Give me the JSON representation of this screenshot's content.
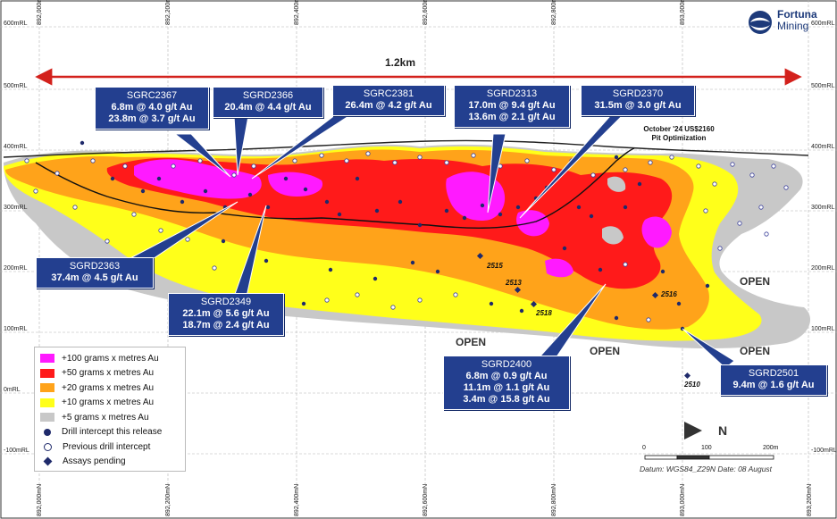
{
  "logo": {
    "name": "Fortuna",
    "sub": "Mining"
  },
  "axes": {
    "easting_top": [
      "892,000mN",
      "892,200mN",
      "892,400mN",
      "892,600mN",
      "892,800mN",
      "893,000mN"
    ],
    "easting_bottom": [
      "892,000mN",
      "892,200mN",
      "892,400mN",
      "892,600mN",
      "892,800mN",
      "893,000mN",
      "893,200mN"
    ],
    "rl_left": [
      "600mRL",
      "500mRL",
      "400mRL",
      "300mRL",
      "200mRL",
      "100mRL",
      "0mRL",
      "-100mRL"
    ],
    "rl_right": [
      "600mRL",
      "500mRL",
      "400mRL",
      "300mRL",
      "200mRL",
      "100mRL",
      "0mRL",
      "-100mRL"
    ]
  },
  "distance_label": "1.2km",
  "pit_label": [
    "October '24 US$2160",
    "Pit Optimization"
  ],
  "callouts": [
    {
      "hole": "SGRC2367",
      "intervals": [
        "6.8m @ 4.0 g/t Au",
        "23.8m @ 3.7 g/t Au"
      ]
    },
    {
      "hole": "SGRD2366",
      "intervals": [
        "20.4m @ 4.4 g/t Au"
      ]
    },
    {
      "hole": "SGRC2381",
      "intervals": [
        "26.4m @ 4.2 g/t Au"
      ]
    },
    {
      "hole": "SGRD2313",
      "intervals": [
        "17.0m @ 9.4 g/t Au",
        "13.6m @ 2.1 g/t Au"
      ]
    },
    {
      "hole": "SGRD2370",
      "intervals": [
        "31.5m @ 3.0 g/t Au"
      ]
    },
    {
      "hole": "SGRD2363",
      "intervals": [
        "37.4m @ 4.5 g/t Au"
      ]
    },
    {
      "hole": "SGRD2349",
      "intervals": [
        "22.1m @ 5.6 g/t Au",
        "18.7m @ 2.4 g/t Au"
      ]
    },
    {
      "hole": "SGRD2400",
      "intervals": [
        "6.8m @ 0.9 g/t Au",
        "11.1m @ 1.1 g/t Au",
        "3.4m @ 15.8 g/t Au"
      ]
    },
    {
      "hole": "SGRD2501",
      "intervals": [
        "9.4m @ 1.6 g/t Au"
      ]
    }
  ],
  "open_labels": [
    "OPEN",
    "OPEN",
    "OPEN",
    "OPEN"
  ],
  "pending_labels": [
    "2515",
    "2513",
    "2518",
    "2516",
    "2510"
  ],
  "legend": [
    {
      "kind": "swatch",
      "color": "#ff1aff",
      "label": "+100 grams x metres Au"
    },
    {
      "kind": "swatch",
      "color": "#ff1a1a",
      "label": "+50 grams x metres Au"
    },
    {
      "kind": "swatch",
      "color": "#ffa31a",
      "label": "+20 grams x metres Au"
    },
    {
      "kind": "swatch",
      "color": "#ffff1a",
      "label": "+10 grams x metres Au"
    },
    {
      "kind": "swatch",
      "color": "#c8c8c8",
      "label": "+5 grams x metres Au"
    },
    {
      "kind": "dot",
      "label": "Drill intercept this release"
    },
    {
      "kind": "ring",
      "label": "Previous drill intercept"
    },
    {
      "kind": "diamond",
      "label": "Assays pending"
    }
  ],
  "north": "N",
  "scale": {
    "ticks": [
      "0",
      "100",
      "200m"
    ]
  },
  "datum": "Datum: WGS84_Z29N Date: 08 August"
}
